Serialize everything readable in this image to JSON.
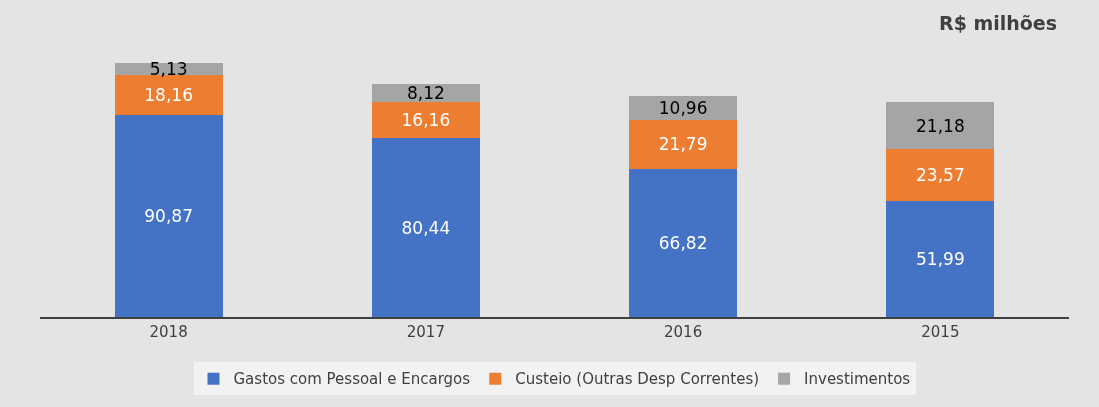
{
  "chart_data": {
    "type": "bar",
    "stacked": true,
    "title": "R$ milhões",
    "categories": [
      "2018",
      "2017",
      "2016",
      "2015"
    ],
    "series": [
      {
        "name": "Gastos com Pessoal e Encargos",
        "color": "#4472c4",
        "values": [
          90.87,
          80.44,
          66.82,
          51.99
        ],
        "value_labels": [
          "90,87",
          "80,44",
          "66,82",
          "51,99"
        ]
      },
      {
        "name": "Custeio (Outras Desp Correntes)",
        "color": "#ed7d31",
        "values": [
          18.16,
          16.16,
          21.79,
          23.57
        ],
        "value_labels": [
          "18,16",
          "16,16",
          "21,79",
          "23,57"
        ]
      },
      {
        "name": "Investimentos",
        "color": "#a5a5a5",
        "values": [
          5.13,
          8.12,
          10.96,
          21.18
        ],
        "value_labels": [
          "5,13",
          "8,12",
          "10,96",
          "21,18"
        ]
      }
    ],
    "tick_labels": "x",
    "legend": "bottom"
  }
}
